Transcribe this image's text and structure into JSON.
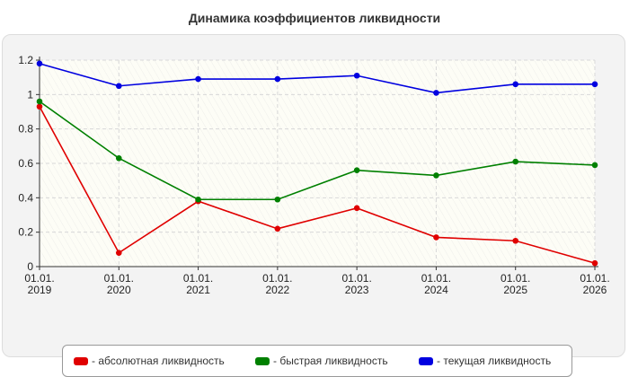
{
  "chart_data": {
    "type": "line",
    "title": "Динамика коэффициентов ликвидности",
    "x_labels": [
      [
        "01.01.",
        "2019"
      ],
      [
        "01.01.",
        "2020"
      ],
      [
        "01.01.",
        "2021"
      ],
      [
        "01.01.",
        "2022"
      ],
      [
        "01.01.",
        "2023"
      ],
      [
        "01.01.",
        "2024"
      ],
      [
        "01.01.",
        "2025"
      ],
      [
        "01.01.",
        "2026"
      ]
    ],
    "x": [
      "01.01.2019",
      "01.01.2020",
      "01.01.2021",
      "01.01.2022",
      "01.01.2023",
      "01.01.2024",
      "01.01.2025",
      "01.01.2026"
    ],
    "ylim": [
      0,
      1.2
    ],
    "yticks": [
      "0",
      "0.2",
      "0.4",
      "0.6",
      "0.8",
      "1",
      "1.2"
    ],
    "ytick_values": [
      0,
      0.2,
      0.4,
      0.6,
      0.8,
      1.0,
      1.2
    ],
    "grid": true,
    "legend_position": "bottom",
    "series": [
      {
        "name": "- абсолютная ликвидность",
        "color": "#e00000",
        "values": [
          0.93,
          0.08,
          0.38,
          0.22,
          0.34,
          0.17,
          0.15,
          0.02
        ]
      },
      {
        "name": "- быстрая ликвидность",
        "color": "#008000",
        "values": [
          0.96,
          0.63,
          0.39,
          0.39,
          0.56,
          0.53,
          0.61,
          0.59
        ]
      },
      {
        "name": "- текущая ликвидность",
        "color": "#0000e0",
        "values": [
          1.18,
          1.05,
          1.09,
          1.09,
          1.11,
          1.01,
          1.06,
          1.06
        ]
      }
    ]
  }
}
